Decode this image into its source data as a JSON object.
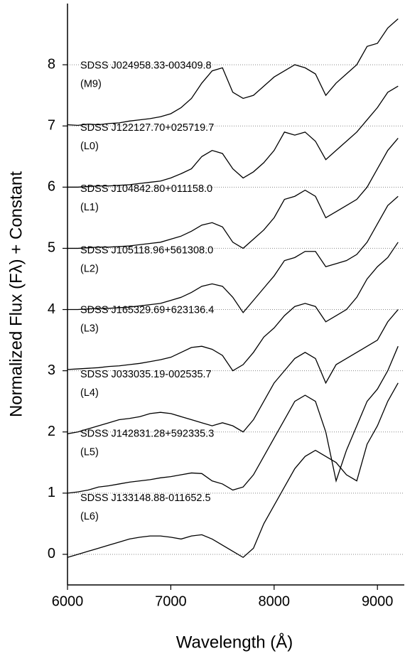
{
  "chart_data": {
    "type": "line",
    "xlabel": "Wavelength (Å)",
    "ylabel": "Normalized Flux (Fλ) + Constant",
    "xlim": [
      6000,
      9260
    ],
    "ylim": [
      -0.5,
      9
    ],
    "xticks": [
      6000,
      7000,
      8000,
      9000
    ],
    "yticks": [
      0,
      1,
      2,
      3,
      4,
      5,
      6,
      7,
      8
    ],
    "grid": true,
    "x": [
      6000,
      6100,
      6200,
      6300,
      6400,
      6500,
      6600,
      6700,
      6800,
      6900,
      7000,
      7100,
      7200,
      7300,
      7400,
      7500,
      7600,
      7700,
      7800,
      7900,
      8000,
      8100,
      8200,
      8300,
      8400,
      8500,
      8600,
      8700,
      8800,
      8900,
      9000,
      9100,
      9200
    ],
    "series": [
      {
        "name": "SDSS J024958.33-003409.8",
        "spectral_type": "(M9)",
        "color": "#000000",
        "values": [
          7.02,
          7.01,
          7.03,
          7.02,
          7.04,
          7.05,
          7.08,
          7.1,
          7.12,
          7.15,
          7.2,
          7.3,
          7.45,
          7.7,
          7.9,
          7.95,
          7.55,
          7.45,
          7.5,
          7.65,
          7.8,
          7.9,
          8.0,
          7.95,
          7.85,
          7.5,
          7.7,
          7.85,
          8.0,
          8.3,
          8.35,
          8.6,
          8.75
        ]
      },
      {
        "name": "SDSS J122127.70+025719.7",
        "spectral_type": "(L0)",
        "color": "#000000",
        "values": [
          6.0,
          6.0,
          6.01,
          6.02,
          6.02,
          6.03,
          6.04,
          6.06,
          6.08,
          6.1,
          6.15,
          6.22,
          6.3,
          6.5,
          6.6,
          6.55,
          6.3,
          6.15,
          6.25,
          6.4,
          6.6,
          6.9,
          6.85,
          6.9,
          6.75,
          6.45,
          6.6,
          6.75,
          6.9,
          7.1,
          7.3,
          7.55,
          7.65
        ]
      },
      {
        "name": "SDSS J104842.80+011158.0",
        "spectral_type": "(L1)",
        "color": "#000000",
        "values": [
          5.0,
          5.0,
          5.01,
          5.02,
          5.02,
          5.03,
          5.04,
          5.06,
          5.08,
          5.1,
          5.15,
          5.2,
          5.28,
          5.38,
          5.42,
          5.35,
          5.1,
          5.0,
          5.15,
          5.3,
          5.5,
          5.8,
          5.85,
          5.95,
          5.85,
          5.5,
          5.6,
          5.7,
          5.8,
          6.0,
          6.3,
          6.6,
          6.8
        ]
      },
      {
        "name": "SDSS J105118.96+561308.0",
        "spectral_type": "(L2)",
        "color": "#000000",
        "values": [
          4.0,
          4.0,
          4.01,
          4.02,
          4.02,
          4.03,
          4.04,
          4.06,
          4.08,
          4.1,
          4.15,
          4.2,
          4.28,
          4.38,
          4.42,
          4.38,
          4.2,
          3.95,
          4.15,
          4.35,
          4.55,
          4.8,
          4.85,
          4.95,
          4.95,
          4.7,
          4.75,
          4.8,
          4.9,
          5.1,
          5.4,
          5.7,
          5.85
        ]
      },
      {
        "name": "SDSS J165329.69+623136.4",
        "spectral_type": "(L3)",
        "color": "#000000",
        "values": [
          3.02,
          3.03,
          3.04,
          3.05,
          3.07,
          3.08,
          3.1,
          3.12,
          3.15,
          3.18,
          3.22,
          3.3,
          3.38,
          3.4,
          3.35,
          3.25,
          3.0,
          3.1,
          3.3,
          3.55,
          3.7,
          3.9,
          4.05,
          4.1,
          4.05,
          3.8,
          3.9,
          4.0,
          4.2,
          4.5,
          4.7,
          4.85,
          5.1
        ]
      },
      {
        "name": "SDSS J033035.19-002535.7",
        "spectral_type": "(L4)",
        "color": "#000000",
        "values": [
          1.97,
          2.0,
          2.05,
          2.1,
          2.15,
          2.2,
          2.22,
          2.25,
          2.3,
          2.32,
          2.3,
          2.25,
          2.2,
          2.15,
          2.1,
          2.15,
          2.1,
          2.0,
          2.2,
          2.5,
          2.8,
          3.0,
          3.2,
          3.3,
          3.2,
          2.8,
          3.1,
          3.2,
          3.3,
          3.4,
          3.5,
          3.8,
          4.0
        ]
      },
      {
        "name": "SDSS J142831.28+592335.3",
        "spectral_type": "(L5)",
        "color": "#000000",
        "values": [
          1.0,
          1.02,
          1.05,
          1.1,
          1.12,
          1.15,
          1.18,
          1.2,
          1.22,
          1.25,
          1.27,
          1.3,
          1.33,
          1.32,
          1.2,
          1.15,
          1.05,
          1.1,
          1.3,
          1.6,
          1.9,
          2.2,
          2.5,
          2.6,
          2.5,
          2.0,
          1.2,
          1.7,
          2.1,
          2.5,
          2.7,
          3.0,
          3.4
        ]
      },
      {
        "name": "SDSS J133148.88-011652.5",
        "spectral_type": "(L6)",
        "color": "#000000",
        "values": [
          -0.05,
          0.0,
          0.05,
          0.1,
          0.15,
          0.2,
          0.25,
          0.28,
          0.3,
          0.3,
          0.28,
          0.25,
          0.3,
          0.32,
          0.25,
          0.15,
          0.05,
          -0.05,
          0.1,
          0.5,
          0.8,
          1.1,
          1.4,
          1.6,
          1.7,
          1.6,
          1.5,
          1.3,
          1.2,
          1.8,
          2.1,
          2.5,
          2.8
        ]
      }
    ]
  }
}
